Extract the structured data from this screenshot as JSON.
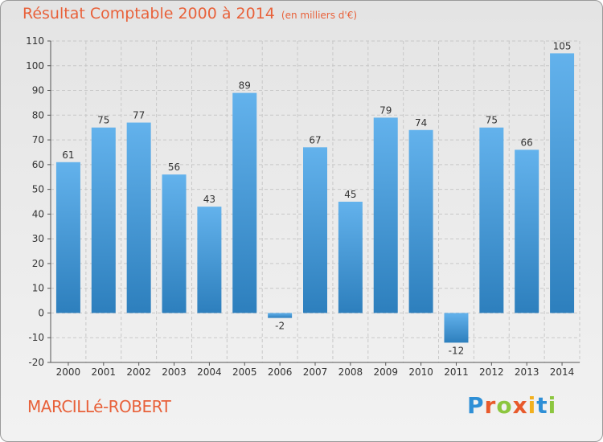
{
  "header": {
    "title": "Résultat Comptable 2000 à 2014",
    "unit": "(en milliers d'€)"
  },
  "footer": {
    "commune": "MARCILLé-ROBERT"
  },
  "brand": {
    "name": "Proxiti",
    "letters": [
      {
        "char": "P",
        "color": "#2e8fd6"
      },
      {
        "char": "r",
        "color": "#e85a2c"
      },
      {
        "char": "o",
        "color": "#8cc63f"
      },
      {
        "char": "x",
        "color": "#e85a2c"
      },
      {
        "char": "i",
        "color": "#f2b01e"
      },
      {
        "char": "t",
        "color": "#2e8fd6"
      },
      {
        "char": "i",
        "color": "#8cc63f"
      }
    ]
  },
  "colors": {
    "title": "#e8613a",
    "bar_top": "#63b2ec",
    "bar_bottom": "#2d7fbd",
    "grid": "#c8c8c8"
  },
  "chart_data": {
    "type": "bar",
    "title": "Résultat Comptable 2000 à 2014",
    "subtitle": "(en milliers d'€)",
    "categories": [
      "2000",
      "2001",
      "2002",
      "2003",
      "2004",
      "2005",
      "2006",
      "2007",
      "2008",
      "2009",
      "2010",
      "2011",
      "2012",
      "2013",
      "2014"
    ],
    "values": [
      61,
      75,
      77,
      56,
      43,
      89,
      -2,
      67,
      45,
      79,
      74,
      -12,
      75,
      66,
      105
    ],
    "data_labels": [
      "61",
      "75",
      "77",
      "56",
      "43",
      "89",
      "-2",
      "67",
      "45",
      "79",
      "74",
      "-12",
      "75",
      "66",
      "105"
    ],
    "ylim": [
      -20,
      110
    ],
    "yticks": [
      -20,
      -10,
      0,
      10,
      20,
      30,
      40,
      50,
      60,
      70,
      80,
      90,
      100,
      110
    ],
    "grid": "horizontal dashed",
    "xlabel": "",
    "ylabel": ""
  }
}
